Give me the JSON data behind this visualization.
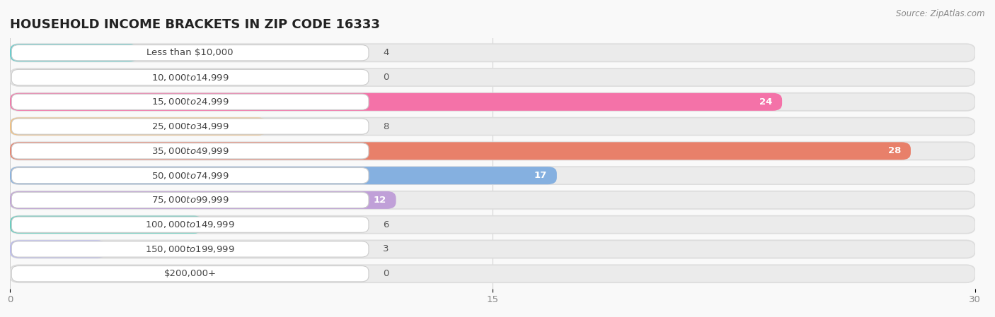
{
  "title": "HOUSEHOLD INCOME BRACKETS IN ZIP CODE 16333",
  "source": "Source: ZipAtlas.com",
  "categories": [
    "Less than $10,000",
    "$10,000 to $14,999",
    "$15,000 to $24,999",
    "$25,000 to $34,999",
    "$35,000 to $49,999",
    "$50,000 to $74,999",
    "$75,000 to $99,999",
    "$100,000 to $149,999",
    "$150,000 to $199,999",
    "$200,000+"
  ],
  "values": [
    4,
    0,
    24,
    8,
    28,
    17,
    12,
    6,
    3,
    0
  ],
  "bar_colors": [
    "#5dcece",
    "#aeaee8",
    "#f472a8",
    "#f5c07a",
    "#e8806a",
    "#85b0e0",
    "#c0a0d8",
    "#5ecebe",
    "#b8b8f0",
    "#f5a8c0"
  ],
  "bar_bg_color": "#ebebeb",
  "label_bg_color": "#ffffff",
  "xlim": [
    0,
    30
  ],
  "xticks": [
    0,
    15,
    30
  ],
  "bg_color": "#f9f9f9",
  "row_bg_colors": [
    "#f2f2f2",
    "#f9f9f9"
  ],
  "title_fontsize": 13,
  "label_fontsize": 9.5,
  "value_fontsize": 9.5
}
